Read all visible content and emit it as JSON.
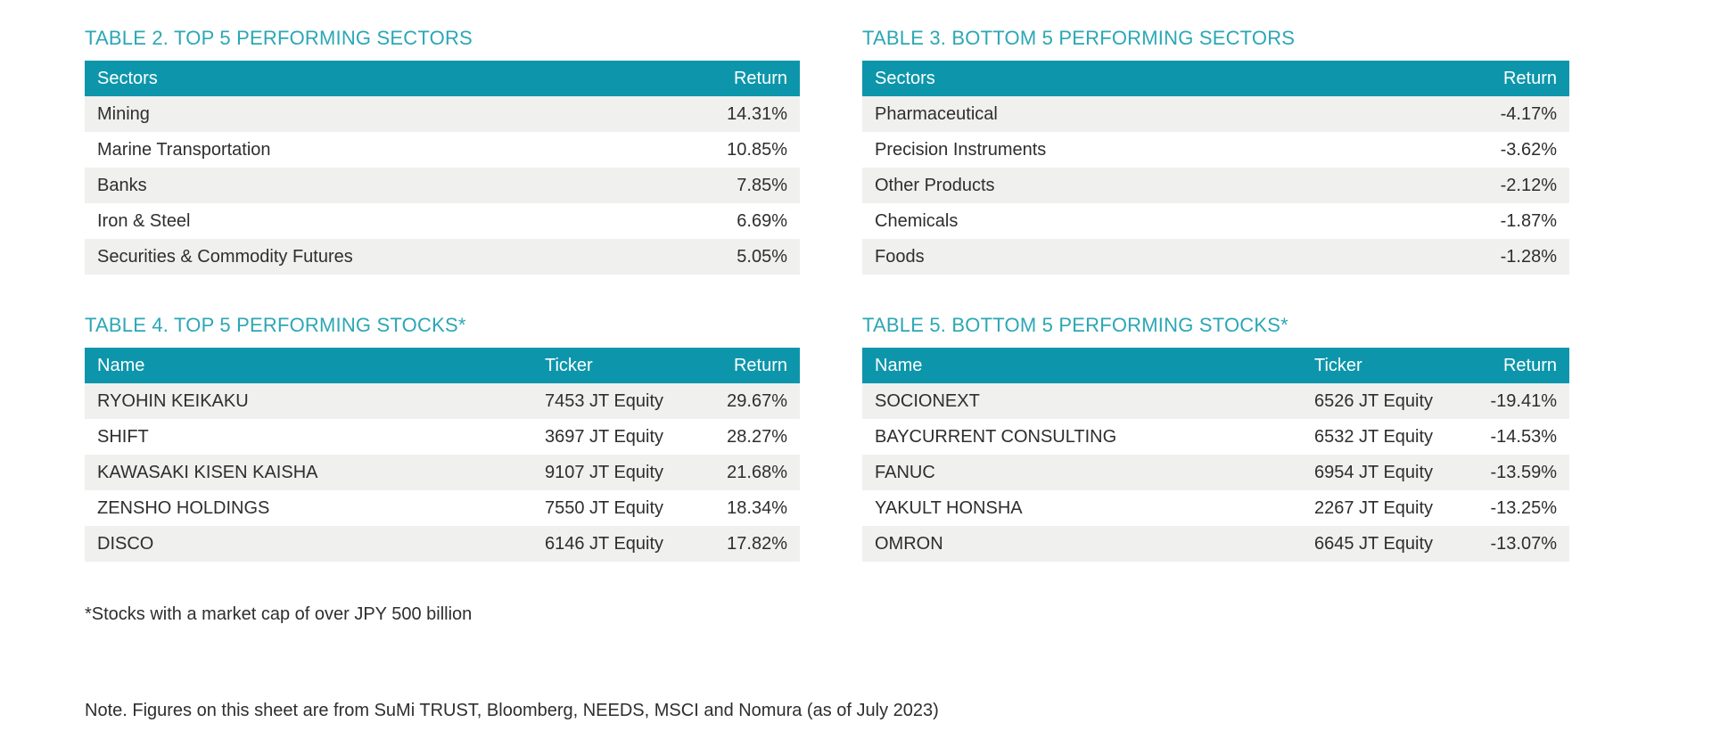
{
  "colors": {
    "accent": "#0d96ab",
    "title_text": "#2ba7b5",
    "row_stripe": "#f0f0ef",
    "body_text": "#2e2e2e",
    "header_text": "#ffffff"
  },
  "tables": {
    "t2": {
      "title": "TABLE 2. TOP 5 PERFORMING SECTORS",
      "columns": [
        "Sectors",
        "Return"
      ],
      "rows": [
        [
          "Mining",
          "14.31%"
        ],
        [
          "Marine Transportation",
          "10.85%"
        ],
        [
          "Banks",
          "7.85%"
        ],
        [
          "Iron & Steel",
          "6.69%"
        ],
        [
          "Securities & Commodity Futures",
          "5.05%"
        ]
      ]
    },
    "t3": {
      "title": "TABLE 3. BOTTOM 5 PERFORMING SECTORS",
      "columns": [
        "Sectors",
        "Return"
      ],
      "rows": [
        [
          "Pharmaceutical",
          "-4.17%"
        ],
        [
          "Precision Instruments",
          "-3.62%"
        ],
        [
          "Other Products",
          "-2.12%"
        ],
        [
          "Chemicals",
          "-1.87%"
        ],
        [
          "Foods",
          "-1.28%"
        ]
      ]
    },
    "t4": {
      "title": "TABLE 4. TOP 5 PERFORMING STOCKS*",
      "columns": [
        "Name",
        "Ticker",
        "Return"
      ],
      "rows": [
        [
          "RYOHIN KEIKAKU",
          "7453 JT Equity",
          "29.67%"
        ],
        [
          "SHIFT",
          "3697 JT Equity",
          "28.27%"
        ],
        [
          "KAWASAKI KISEN KAISHA",
          "9107 JT Equity",
          "21.68%"
        ],
        [
          "ZENSHO HOLDINGS",
          "7550 JT Equity",
          "18.34%"
        ],
        [
          "DISCO",
          "6146 JT Equity",
          "17.82%"
        ]
      ]
    },
    "t5": {
      "title": "TABLE 5. BOTTOM 5 PERFORMING STOCKS*",
      "columns": [
        "Name",
        "Ticker",
        "Return"
      ],
      "rows": [
        [
          "SOCIONEXT",
          "6526 JT Equity",
          "-19.41%"
        ],
        [
          "BAYCURRENT CONSULTING",
          "6532 JT Equity",
          "-14.53%"
        ],
        [
          "FANUC",
          "6954 JT Equity",
          "-13.59%"
        ],
        [
          "YAKULT HONSHA",
          "2267 JT Equity",
          "-13.25%"
        ],
        [
          "OMRON",
          "6645 JT Equity",
          "-13.07%"
        ]
      ]
    }
  },
  "footnote": "*Stocks with a market cap of over JPY 500 billion",
  "source_note": "Note. Figures on this sheet are from SuMi TRUST, Bloomberg, NEEDS, MSCI and Nomura (as of July 2023)"
}
